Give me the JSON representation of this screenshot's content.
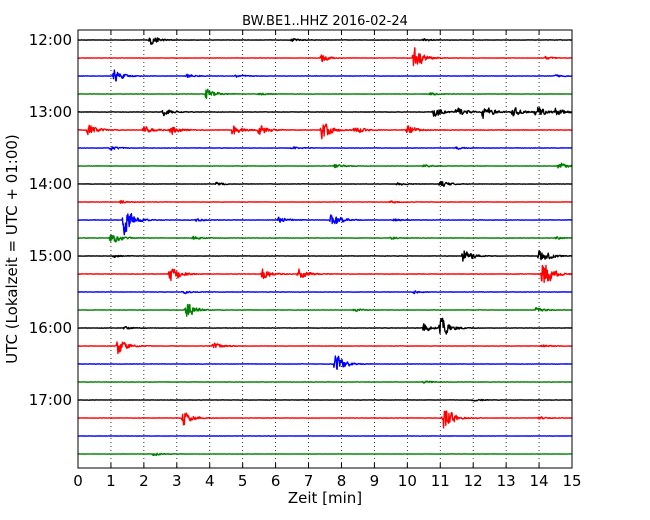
{
  "chart_data": {
    "type": "line",
    "title": "BW.BE1..HHZ 2016-02-24",
    "xlabel": "Zeit  [min]",
    "ylabel": "UTC (Lokalzeit = UTC + 01:00)",
    "xlim": [
      0,
      15
    ],
    "x_ticks": [
      "0",
      "1",
      "2",
      "3",
      "4",
      "5",
      "6",
      "7",
      "8",
      "9",
      "10",
      "11",
      "12",
      "13",
      "14",
      "15"
    ],
    "y_ticks": [
      "12:00",
      "13:00",
      "14:00",
      "15:00",
      "16:00",
      "17:00"
    ],
    "grid": true,
    "grid_axis": "x",
    "colors": [
      "#000000",
      "#ff0000",
      "#0000ff",
      "#008000"
    ],
    "traces": [
      {
        "start": "12:00",
        "noise": 0.12,
        "events": [
          [
            2.2,
            4
          ],
          [
            6.5,
            1.2
          ],
          [
            10.5,
            1
          ]
        ]
      },
      {
        "start": "12:15",
        "noise": 0.12,
        "events": [
          [
            7.4,
            3
          ],
          [
            10.2,
            10
          ],
          [
            14.2,
            1.2
          ]
        ]
      },
      {
        "start": "12:30",
        "noise": 0.12,
        "events": [
          [
            1.1,
            5
          ],
          [
            3.3,
            1.5
          ],
          [
            4.8,
            1.2
          ],
          [
            14.5,
            1
          ]
        ]
      },
      {
        "start": "12:45",
        "noise": 0.12,
        "events": [
          [
            3.9,
            5
          ],
          [
            5.5,
            1
          ],
          [
            10.7,
            1
          ]
        ]
      },
      {
        "start": "13:00",
        "noise": 0.15,
        "events": [
          [
            2.6,
            3
          ],
          [
            10.8,
            5
          ],
          [
            11.5,
            4
          ],
          [
            12.3,
            6
          ],
          [
            13.2,
            4
          ],
          [
            13.9,
            5
          ],
          [
            14.5,
            3
          ]
        ]
      },
      {
        "start": "13:15",
        "noise": 0.18,
        "events": [
          [
            0.3,
            5
          ],
          [
            2,
            3
          ],
          [
            2.8,
            4
          ],
          [
            4.7,
            5
          ],
          [
            5.5,
            4
          ],
          [
            7.4,
            8
          ],
          [
            8.4,
            3
          ],
          [
            10,
            4
          ]
        ]
      },
      {
        "start": "13:30",
        "noise": 0.12,
        "events": [
          [
            1,
            1.5
          ],
          [
            6.5,
            1
          ],
          [
            11.5,
            1
          ]
        ]
      },
      {
        "start": "13:45",
        "noise": 0.12,
        "events": [
          [
            7.8,
            1.5
          ],
          [
            10.5,
            1
          ],
          [
            14.6,
            3
          ]
        ]
      },
      {
        "start": "14:00",
        "noise": 0.12,
        "events": [
          [
            4.2,
            1.2
          ],
          [
            9.7,
            1.2
          ],
          [
            11,
            2.5
          ]
        ]
      },
      {
        "start": "14:15",
        "noise": 0.12,
        "events": [
          [
            1.3,
            1.2
          ],
          [
            9.5,
            1
          ]
        ]
      },
      {
        "start": "14:30",
        "noise": 0.13,
        "events": [
          [
            1.4,
            12
          ],
          [
            3.6,
            1.2
          ],
          [
            6.1,
            2.5
          ],
          [
            7.7,
            7
          ],
          [
            9.6,
            1
          ]
        ]
      },
      {
        "start": "14:45",
        "noise": 0.13,
        "events": [
          [
            1,
            5
          ],
          [
            3.5,
            1.5
          ],
          [
            9.5,
            1
          ],
          [
            14.5,
            1
          ]
        ]
      },
      {
        "start": "15:00",
        "noise": 0.12,
        "events": [
          [
            1.1,
            1.2
          ],
          [
            11.7,
            6
          ],
          [
            14,
            5
          ],
          [
            14.3,
            1
          ]
        ]
      },
      {
        "start": "15:15",
        "noise": 0.15,
        "events": [
          [
            2.8,
            7
          ],
          [
            5.6,
            4
          ],
          [
            6.7,
            5
          ],
          [
            14.1,
            13
          ]
        ]
      },
      {
        "start": "15:30",
        "noise": 0.12,
        "events": [
          [
            3.2,
            1.2
          ],
          [
            10.2,
            1
          ]
        ]
      },
      {
        "start": "15:45",
        "noise": 0.12,
        "events": [
          [
            3.3,
            6
          ],
          [
            8.4,
            1.5
          ],
          [
            13.9,
            2
          ]
        ]
      },
      {
        "start": "16:00",
        "noise": 0.13,
        "events": [
          [
            1.4,
            1.2
          ],
          [
            10.5,
            3
          ],
          [
            11,
            9
          ]
        ]
      },
      {
        "start": "16:15",
        "noise": 0.12,
        "events": [
          [
            1.2,
            7
          ],
          [
            4.1,
            3
          ],
          [
            14.1,
            1
          ]
        ]
      },
      {
        "start": "16:30",
        "noise": 0.12,
        "events": [
          [
            7.8,
            9
          ]
        ]
      },
      {
        "start": "16:45",
        "noise": 0.12,
        "events": [
          [
            10.5,
            1.2
          ]
        ]
      },
      {
        "start": "17:00",
        "noise": 0.12,
        "events": [
          [
            12,
            1.2
          ]
        ]
      },
      {
        "start": "17:15",
        "noise": 0.13,
        "events": [
          [
            3.2,
            6
          ],
          [
            11.1,
            11
          ],
          [
            14,
            1
          ]
        ]
      },
      {
        "start": "17:30",
        "noise": 0.1,
        "events": []
      },
      {
        "start": "17:45",
        "noise": 0.1,
        "events": [
          [
            2.3,
            1.5
          ]
        ]
      }
    ]
  }
}
